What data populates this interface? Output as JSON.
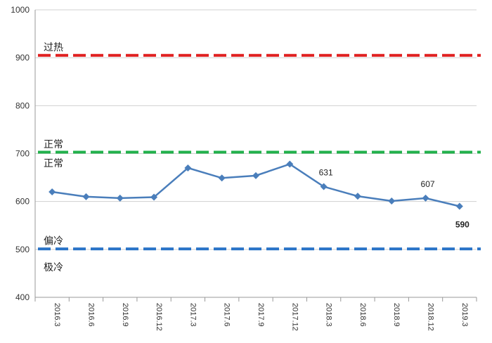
{
  "chart_data": {
    "type": "line",
    "title": "",
    "xlabel": "",
    "ylabel": "",
    "ylim": [
      400,
      1000
    ],
    "yticks": [
      400,
      500,
      600,
      700,
      800,
      900,
      1000
    ],
    "grid": "horizontal",
    "categories": [
      "2016.3",
      "2016.6",
      "2016.9",
      "2016.12",
      "2017.3",
      "2017.6",
      "2017.9",
      "2017.12",
      "2018.3",
      "2018.6",
      "2018.9",
      "2018.12",
      "2019.3"
    ],
    "series": [
      {
        "values": [
          620,
          610,
          607,
          609,
          670,
          649,
          654,
          678,
          631,
          611,
          601,
          607,
          590
        ],
        "color": "#4a7ebb",
        "marker": "diamond"
      }
    ],
    "data_labels": [
      {
        "index": 8,
        "text": "631",
        "bold": false
      },
      {
        "index": 11,
        "text": "607",
        "bold": false
      },
      {
        "index": 12,
        "text": "590",
        "bold": true
      }
    ],
    "reference_lines": [
      {
        "value": 905,
        "color": "#e02020",
        "style": "dashed",
        "label": "过热",
        "label_at": 922
      },
      {
        "value": 703,
        "color": "#22b14c",
        "style": "dashed",
        "label": "正常",
        "label_at": 720
      },
      {
        "value": 501,
        "color": "#2a74c8",
        "style": "dashed",
        "label": "偏冷",
        "label_at": 518
      }
    ],
    "zone_labels": [
      {
        "text": "正常",
        "at": 680
      },
      {
        "text": "极冷",
        "at": 463
      }
    ]
  }
}
